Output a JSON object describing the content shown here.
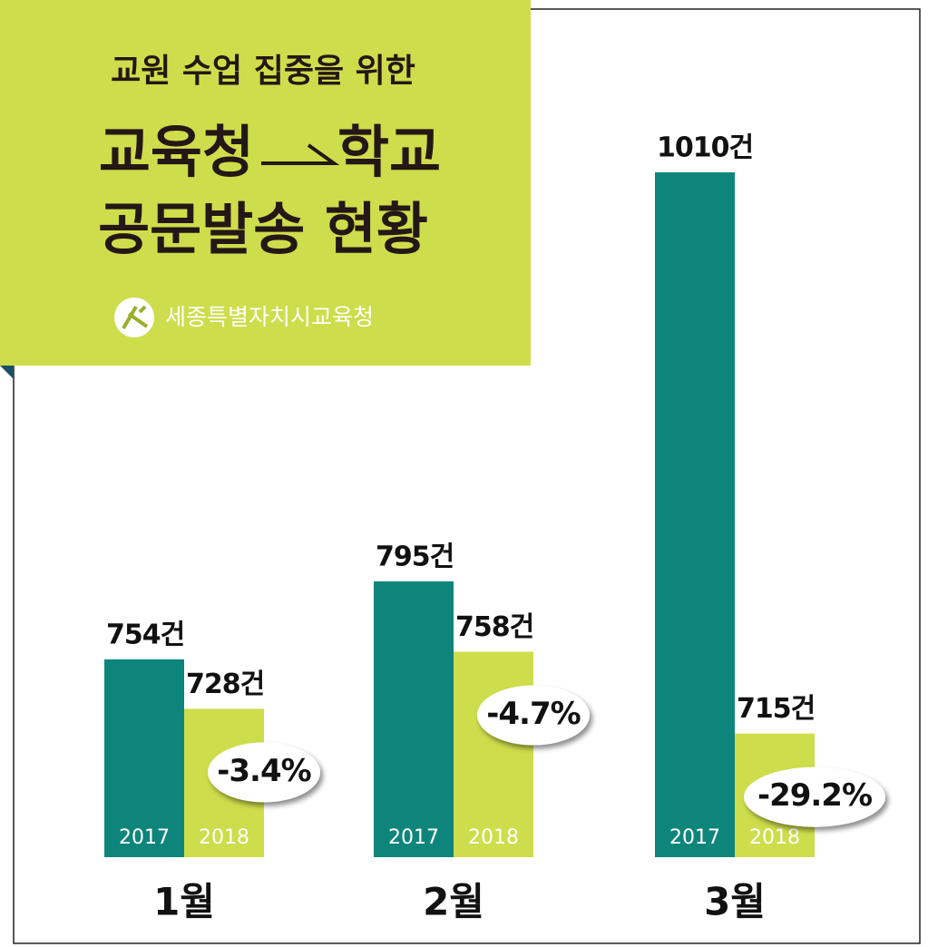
{
  "header": {
    "title_line1": "교원 수업 집중을 위한",
    "title_from": "교육청",
    "title_to": "학교",
    "title_line3": "공문발송 현황",
    "source": "세종특별자치시교육청"
  },
  "chart_data": {
    "type": "bar",
    "categories": [
      "1월",
      "2월",
      "3월"
    ],
    "series": [
      {
        "name": "2017",
        "color": "#0e857a",
        "values": [
          754,
          795,
          1010
        ],
        "value_labels": [
          "754건",
          "795건",
          "1010건"
        ]
      },
      {
        "name": "2018",
        "color": "#cedd4b",
        "values": [
          728,
          758,
          715
        ],
        "value_labels": [
          "728건",
          "758건",
          "715건"
        ]
      }
    ],
    "annotations": [
      "-3.4%",
      "-4.7%",
      "-29.2%"
    ],
    "ylim": [
      650,
      1020
    ]
  }
}
